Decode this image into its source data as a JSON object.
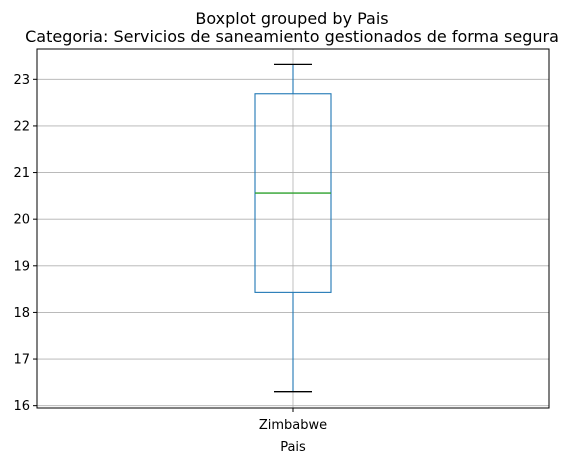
{
  "chart_data": {
    "type": "boxplot",
    "suptitle": "Boxplot grouped by Pais",
    "title": "Categoria: Servicios de saneamiento gestionados de forma segura",
    "xlabel": "Pais",
    "ylabel": "",
    "categories": [
      "Zimbabwe"
    ],
    "boxes": [
      {
        "category": "Zimbabwe",
        "whisker_low": 16.3,
        "q1": 18.43,
        "median": 20.56,
        "q3": 22.69,
        "whisker_high": 23.32
      }
    ],
    "ylim": [
      15.95,
      23.65
    ],
    "yticks": [
      16,
      17,
      18,
      19,
      20,
      21,
      22,
      23
    ],
    "grid": true,
    "colors": {
      "box": "#1f77b4",
      "median": "#2ca02c",
      "whisker": "#1f77b4",
      "cap": "#000000",
      "grid": "#b0b0b0"
    }
  }
}
